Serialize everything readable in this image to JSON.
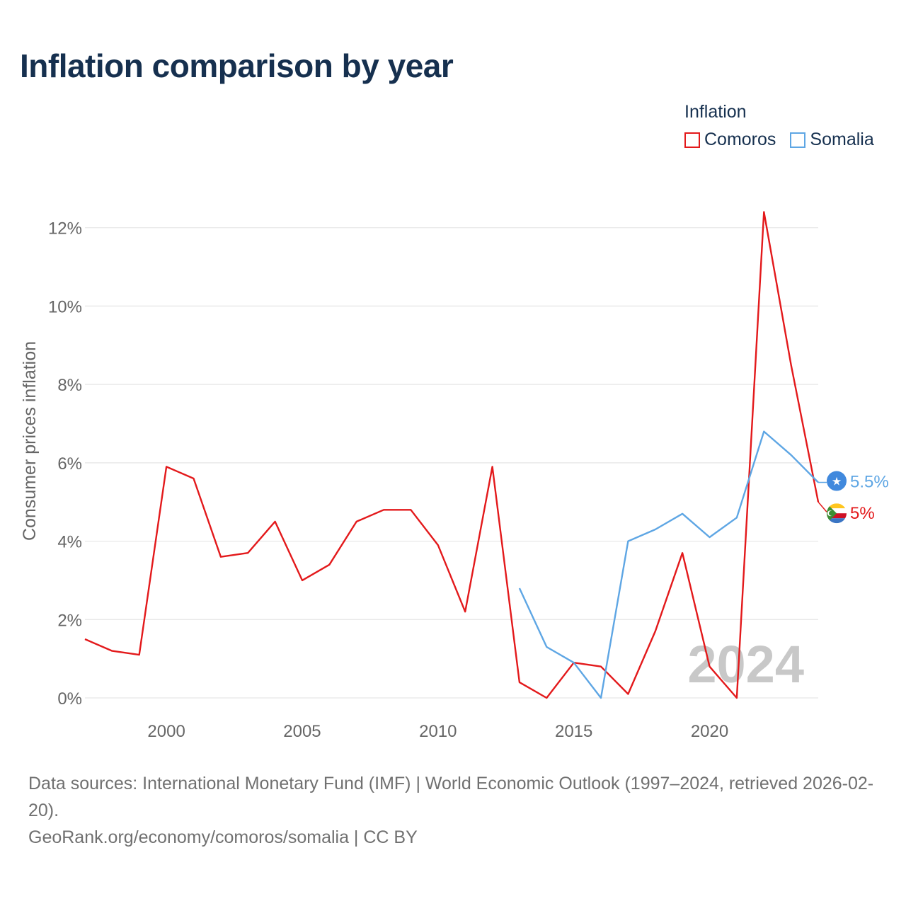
{
  "title": "Inflation comparison by year",
  "legend": {
    "title": "Inflation",
    "items": [
      {
        "label": "Comoros",
        "color": "#e3191b"
      },
      {
        "label": "Somalia",
        "color": "#5ea6e4"
      }
    ]
  },
  "year_label": "2024",
  "source": {
    "line1": "Data sources: International Monetary Fund (IMF) | World Economic Outlook (1997–2024, retrieved 2026-02-20).",
    "line2": "GeoRank.org/economy/comoros/somalia | CC BY"
  },
  "chart_data": {
    "type": "line",
    "title": "Inflation comparison by year",
    "xlabel": "",
    "ylabel": "Consumer prices inflation",
    "xlim": [
      1997,
      2024
    ],
    "ylim": [
      0,
      12.5
    ],
    "x_ticks": [
      2000,
      2005,
      2010,
      2015,
      2020
    ],
    "y_ticks": [
      0,
      2,
      4,
      6,
      8,
      10,
      12
    ],
    "y_tick_labels": [
      "0%",
      "2%",
      "4%",
      "6%",
      "8%",
      "10%",
      "12%"
    ],
    "grid": true,
    "legend_position": "top-right",
    "series": [
      {
        "name": "Comoros",
        "color": "#e3191b",
        "end_label": "5%",
        "x": [
          1997,
          1998,
          1999,
          2000,
          2001,
          2002,
          2003,
          2004,
          2005,
          2006,
          2007,
          2008,
          2009,
          2010,
          2011,
          2012,
          2013,
          2014,
          2015,
          2016,
          2017,
          2018,
          2019,
          2020,
          2021,
          2022,
          2023,
          2024
        ],
        "values": [
          1.5,
          1.2,
          1.1,
          5.9,
          5.6,
          3.6,
          3.7,
          4.5,
          3.0,
          3.4,
          4.5,
          4.8,
          4.8,
          3.9,
          2.2,
          5.9,
          0.4,
          0.0,
          0.9,
          0.8,
          0.1,
          1.7,
          3.7,
          0.8,
          0.0,
          12.4,
          8.5,
          5.0
        ]
      },
      {
        "name": "Somalia",
        "color": "#5ea6e4",
        "end_label": "5.5%",
        "x": [
          2013,
          2014,
          2015,
          2016,
          2017,
          2018,
          2019,
          2020,
          2021,
          2022,
          2023,
          2024
        ],
        "values": [
          2.8,
          1.3,
          0.9,
          0.0,
          4.0,
          4.3,
          4.7,
          4.1,
          4.6,
          6.8,
          6.2,
          5.5
        ]
      }
    ]
  }
}
